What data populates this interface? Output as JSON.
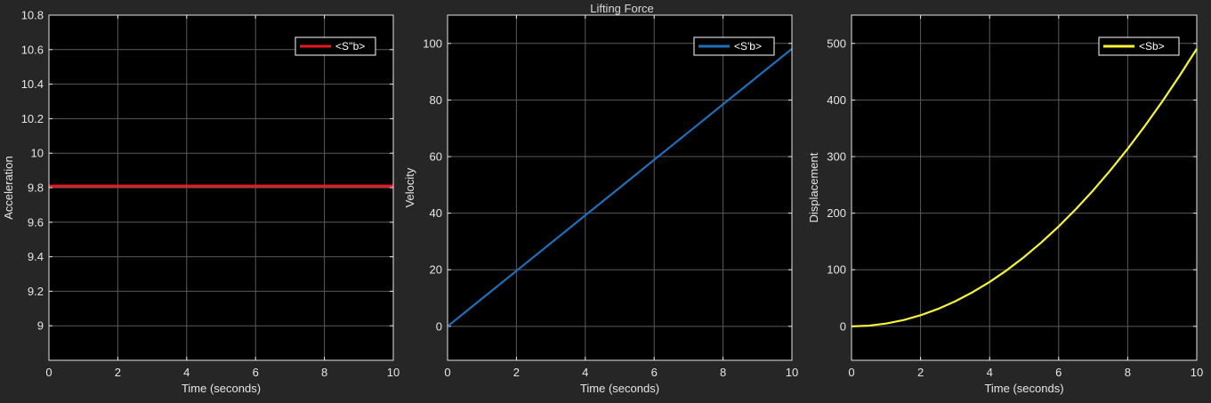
{
  "figure": {
    "title": "Lifting Force",
    "background": "#262626",
    "axes_background": "#000000",
    "grid_color": "#5a5a5a",
    "tick_color": "#e6e6e6"
  },
  "chart_data": [
    {
      "type": "line",
      "title": "",
      "xlabel": "Time (seconds)",
      "ylabel": "Acceleration",
      "xlim": [
        0,
        10
      ],
      "ylim": [
        8.8,
        10.8
      ],
      "xticks": [
        0,
        2,
        4,
        6,
        8,
        10
      ],
      "yticks": [
        9,
        9.2,
        9.4,
        9.6,
        9.8,
        10,
        10.2,
        10.4,
        10.6,
        10.8
      ],
      "grid": true,
      "legend_position": "top-right",
      "series": [
        {
          "name": "<S''b>",
          "color": "#e8191e",
          "x": [
            0,
            1,
            2,
            3,
            4,
            5,
            6,
            7,
            8,
            9,
            10
          ],
          "y": [
            9.81,
            9.81,
            9.81,
            9.81,
            9.81,
            9.81,
            9.81,
            9.81,
            9.81,
            9.81,
            9.81
          ]
        }
      ]
    },
    {
      "type": "line",
      "title": "",
      "xlabel": "Time (seconds)",
      "ylabel": "Velocity",
      "xlim": [
        0,
        10
      ],
      "ylim": [
        -12,
        110
      ],
      "xticks": [
        0,
        2,
        4,
        6,
        8,
        10
      ],
      "yticks": [
        0,
        20,
        40,
        60,
        80,
        100
      ],
      "grid": true,
      "legend_position": "top-right",
      "series": [
        {
          "name": "<S'b>",
          "color": "#1f6fb8",
          "x": [
            0,
            1,
            2,
            3,
            4,
            5,
            6,
            7,
            8,
            9,
            10
          ],
          "y": [
            0,
            9.81,
            19.62,
            29.43,
            39.24,
            49.05,
            58.86,
            68.67,
            78.48,
            88.29,
            98.1
          ]
        }
      ]
    },
    {
      "type": "line",
      "title": "",
      "xlabel": "Time (seconds)",
      "ylabel": "Displacement",
      "xlim": [
        0,
        10
      ],
      "ylim": [
        -60,
        550
      ],
      "xticks": [
        0,
        2,
        4,
        6,
        8,
        10
      ],
      "yticks": [
        0,
        100,
        200,
        300,
        400,
        500
      ],
      "grid": true,
      "legend_position": "top-right",
      "series": [
        {
          "name": "<Sb>",
          "color": "#f5f53a",
          "x": [
            0,
            0.5,
            1,
            1.5,
            2,
            2.5,
            3,
            3.5,
            4,
            4.5,
            5,
            5.5,
            6,
            6.5,
            7,
            7.5,
            8,
            8.5,
            9,
            9.5,
            10
          ],
          "y": [
            0,
            1.23,
            4.91,
            11.04,
            19.62,
            30.66,
            44.15,
            60.09,
            78.48,
            99.33,
            122.63,
            148.38,
            176.58,
            207.23,
            240.35,
            275.91,
            313.92,
            354.39,
            397.31,
            442.69,
            490.5
          ]
        }
      ]
    }
  ]
}
